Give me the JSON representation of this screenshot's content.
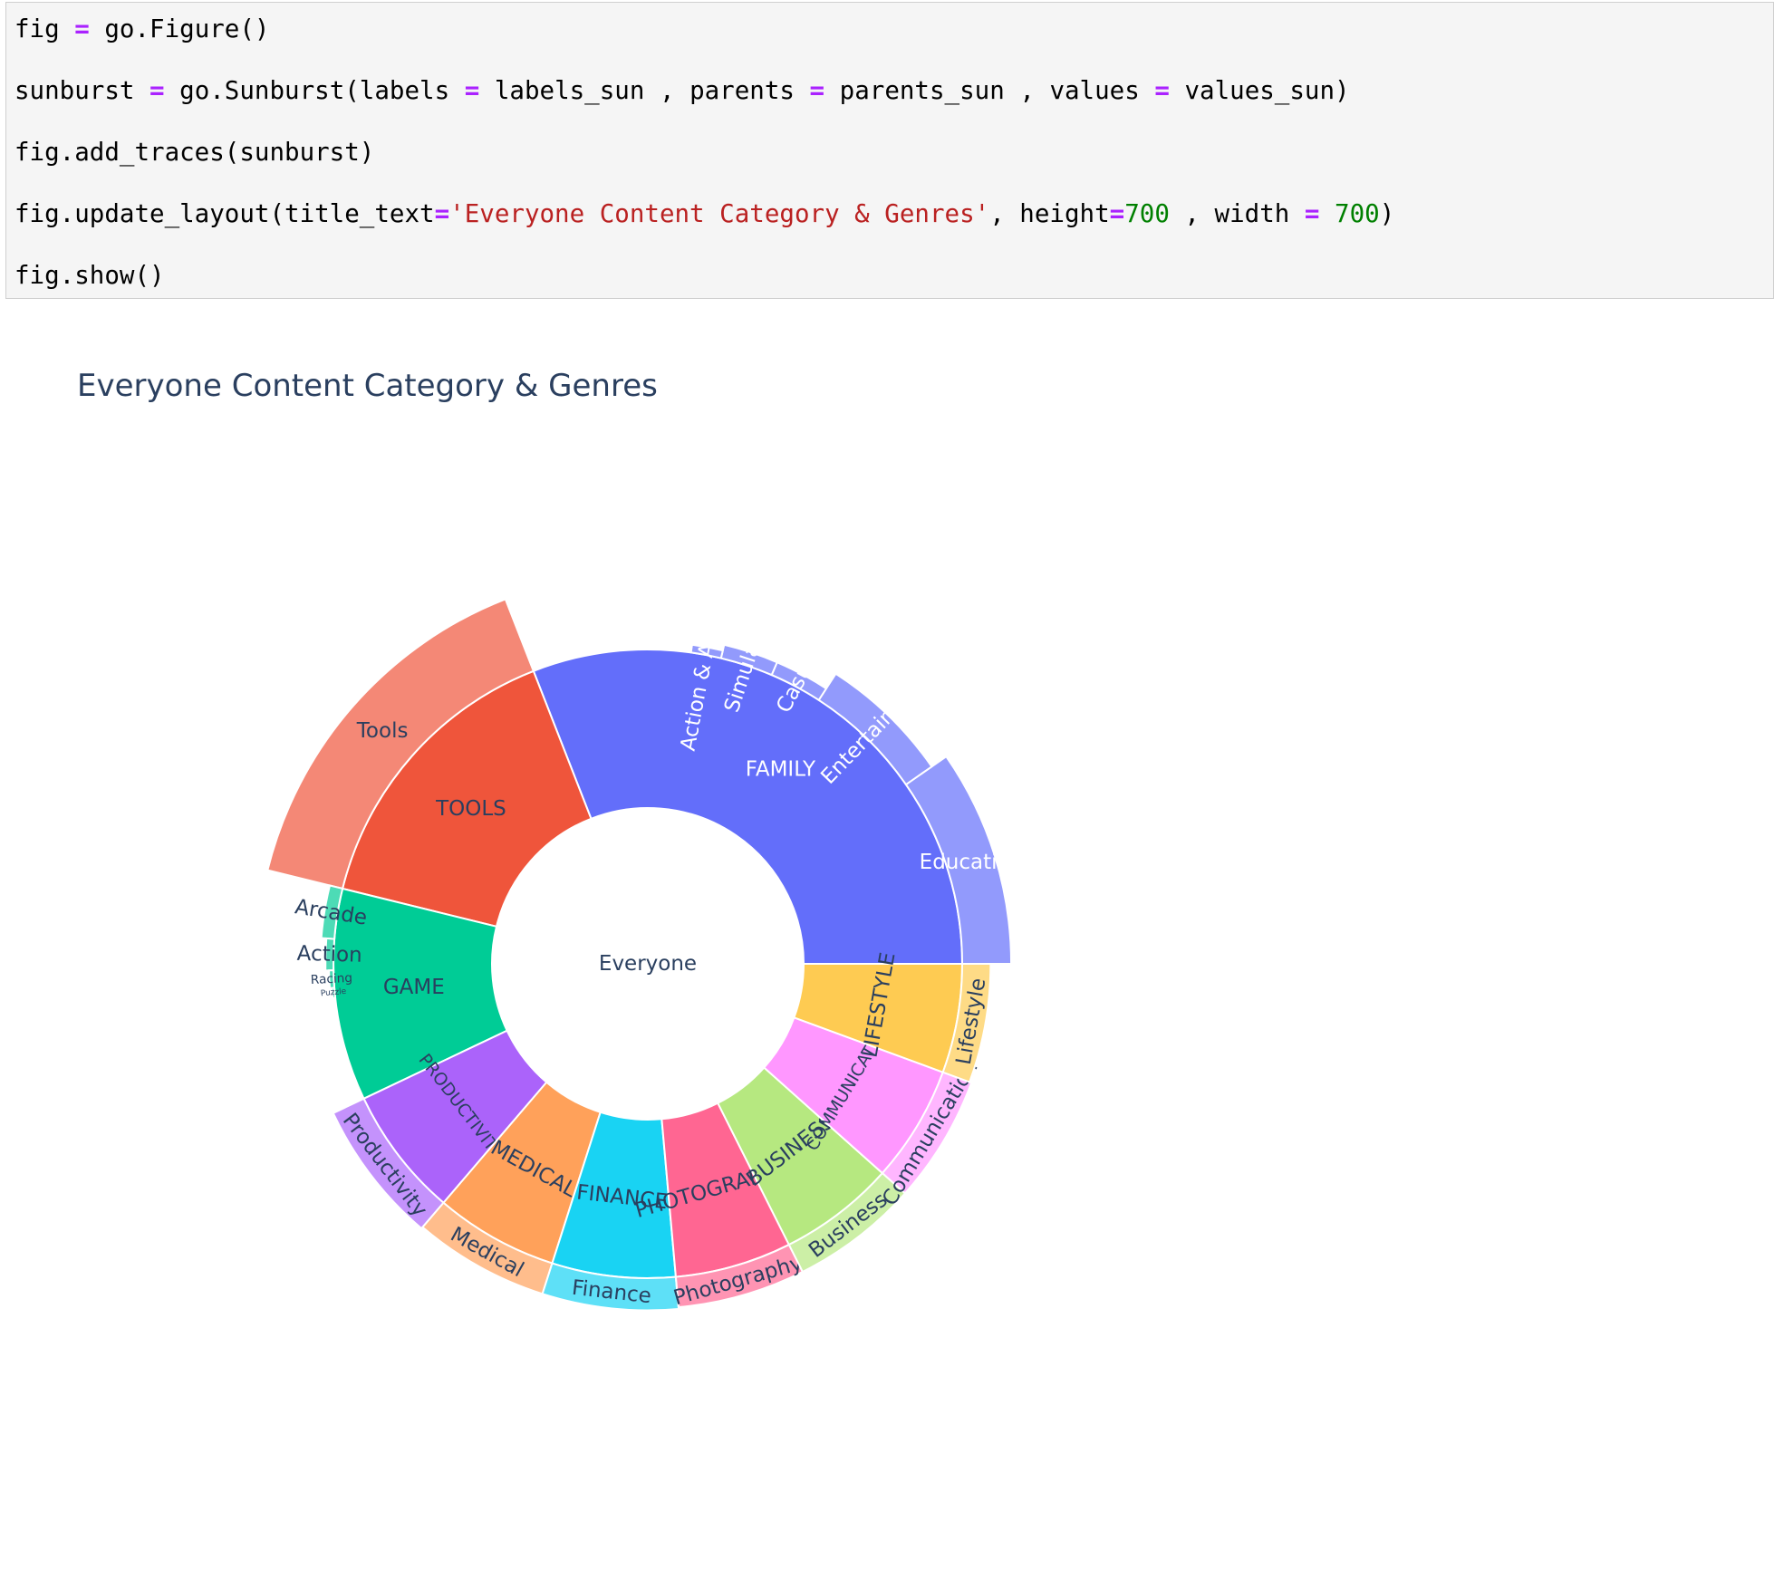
{
  "code_cell": {
    "lines": [
      [
        {
          "t": "fig "
        },
        {
          "t": "=",
          "c": "op"
        },
        {
          "t": " go.Figure()"
        }
      ],
      [
        {
          "t": "sunburst "
        },
        {
          "t": "=",
          "c": "op"
        },
        {
          "t": " go.Sunburst(labels "
        },
        {
          "t": "=",
          "c": "op"
        },
        {
          "t": " labels_sun , parents "
        },
        {
          "t": "=",
          "c": "op"
        },
        {
          "t": " parents_sun , values "
        },
        {
          "t": "=",
          "c": "op"
        },
        {
          "t": " values_sun)"
        }
      ],
      [
        {
          "t": "fig.add_traces(sunburst)"
        }
      ],
      [
        {
          "t": "fig.update_layout(title_text"
        },
        {
          "t": "=",
          "c": "op"
        },
        {
          "t": "'Everyone Content Category & Genres'",
          "c": "str"
        },
        {
          "t": ", height"
        },
        {
          "t": "=",
          "c": "op"
        },
        {
          "t": "700",
          "c": "num"
        },
        {
          "t": " , width "
        },
        {
          "t": "=",
          "c": "op"
        },
        {
          "t": " "
        },
        {
          "t": "700",
          "c": "num"
        },
        {
          "t": ")"
        }
      ],
      [
        {
          "t": "fig.show()"
        }
      ]
    ]
  },
  "chart_data": {
    "type": "sunburst",
    "title": "Everyone Content Category & Genres",
    "root": "Everyone",
    "categories": [
      {
        "label": "FAMILY",
        "value": 800,
        "color": "#636efa",
        "text_color": "#ffffff",
        "children": [
          {
            "label": "Education",
            "value": 250
          },
          {
            "label": "Entertainment",
            "value": 160
          },
          {
            "label": "Casual",
            "value": 70
          },
          {
            "label": "Simulation",
            "value": 70
          },
          {
            "label": "Action & Adventure",
            "value": 40
          }
        ]
      },
      {
        "label": "TOOLS",
        "value": 394,
        "color": "#ef553b",
        "text_color": "#2a3f5f",
        "children": [
          {
            "label": "Tools",
            "value": 394
          }
        ]
      },
      {
        "label": "GAME",
        "value": 282,
        "color": "#00cc96",
        "text_color": "#2a3f5f",
        "children": [
          {
            "label": "Arcade",
            "value": 67
          },
          {
            "label": "Action",
            "value": 41
          },
          {
            "label": "Racing",
            "value": 23
          },
          {
            "label": "Puzzle",
            "value": 13
          }
        ]
      },
      {
        "label": "PRODUCTIVITY",
        "value": 173,
        "color": "#ab63fa",
        "text_color": "#2a3f5f",
        "children": [
          {
            "label": "Productivity",
            "value": 173
          }
        ]
      },
      {
        "label": "MEDICAL",
        "value": 164,
        "color": "#ffa15a",
        "text_color": "#2a3f5f",
        "children": [
          {
            "label": "Medical",
            "value": 164
          }
        ]
      },
      {
        "label": "FINANCE",
        "value": 164,
        "color": "#19d3f3",
        "text_color": "#2a3f5f",
        "children": [
          {
            "label": "Finance",
            "value": 164
          }
        ]
      },
      {
        "label": "PHOTOGRAPHY",
        "value": 155,
        "color": "#ff6692",
        "text_color": "#2a3f5f",
        "children": [
          {
            "label": "Photography",
            "value": 155
          }
        ]
      },
      {
        "label": "BUSINESS",
        "value": 155,
        "color": "#b6e880",
        "text_color": "#2a3f5f",
        "children": [
          {
            "label": "Business",
            "value": 155
          }
        ]
      },
      {
        "label": "COMMUNICATION",
        "value": 155,
        "color": "#ff97ff",
        "text_color": "#2a3f5f",
        "children": [
          {
            "label": "Communication",
            "value": 155
          }
        ]
      },
      {
        "label": "LIFESTYLE",
        "value": 145,
        "color": "#fecb52",
        "text_color": "#2a3f5f",
        "children": [
          {
            "label": "Lifestyle",
            "value": 145
          }
        ]
      }
    ]
  }
}
